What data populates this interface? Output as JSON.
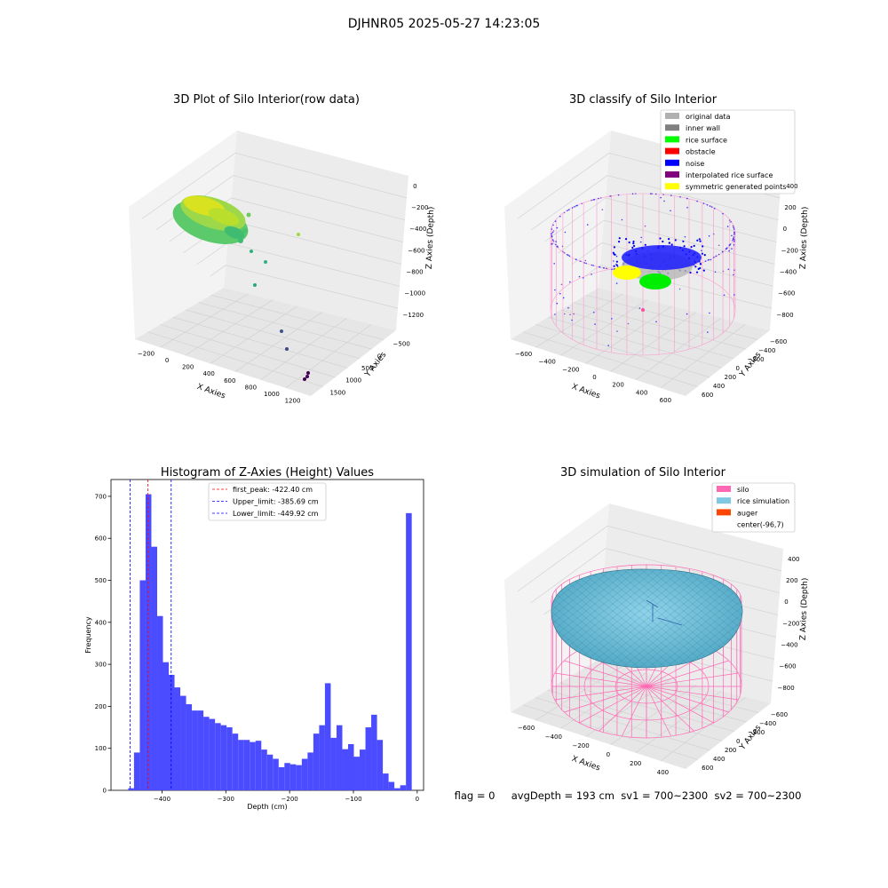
{
  "figure": {
    "suptitle": "DJHNR05 2025-05-27 14:23:05",
    "status_text": "flag = 0     avgDepth = 193 cm  sv1 = 700~2300  sv2 = 700~2300"
  },
  "colors": {
    "hist_bar": "#4b4bff",
    "peak_line": "#ff0000",
    "limit_line": "#0000ff",
    "silo_wire": "#ff69b4",
    "rice_sim": "#7ec8e3",
    "auger": "#ff4500",
    "rice_surface": "#00ff00",
    "noise": "#0000ff",
    "interp": "#800080",
    "symm": "#ffff00",
    "orig": "#b0b0b0",
    "inner_wall": "#808080",
    "obstacle": "#ff0000"
  },
  "panel1": {
    "title": "3D Plot of Silo Interior(row data)",
    "xlabel": "X Axies",
    "ylabel": "Y Axies",
    "zlabel": "Z Axies (Depth)",
    "xticks": [
      "−200",
      "0",
      "200",
      "400",
      "600",
      "800",
      "1000",
      "1200"
    ],
    "yticks": [
      "−500",
      "0",
      "500",
      "1000",
      "1500"
    ],
    "zticks": [
      "0",
      "−200",
      "−400",
      "−600",
      "−800",
      "−1000",
      "−1200"
    ]
  },
  "panel2": {
    "title": "3D classify of Silo Interior",
    "xlabel": "X Axies",
    "ylabel": "Y Axies",
    "zlabel": "Z Axies (Depth)",
    "xticks": [
      "−600",
      "−400",
      "−200",
      "0",
      "200",
      "400",
      "600"
    ],
    "yticks": [
      "−600",
      "−400",
      "−200",
      "0",
      "200",
      "400",
      "600"
    ],
    "zticks": [
      "400",
      "200",
      "0",
      "−200",
      "−400",
      "−600",
      "−800"
    ],
    "legend": [
      {
        "label": "original data",
        "color": "#b0b0b0"
      },
      {
        "label": "inner wall",
        "color": "#808080"
      },
      {
        "label": "rice surface",
        "color": "#00ff00"
      },
      {
        "label": "obstacle",
        "color": "#ff0000"
      },
      {
        "label": "noise",
        "color": "#0000ff"
      },
      {
        "label": "interpolated rice surface",
        "color": "#800080"
      },
      {
        "label": "symmetric generated points",
        "color": "#ffff00"
      }
    ]
  },
  "panel4": {
    "title": "3D simulation of Silo Interior",
    "xlabel": "X Axies",
    "ylabel": "Y Axies",
    "zlabel": "Z Axies (Depth)",
    "xticks": [
      "−600",
      "−400",
      "−200",
      "0",
      "200",
      "400"
    ],
    "yticks": [
      "−600",
      "−400",
      "−200",
      "0",
      "200",
      "400",
      "600"
    ],
    "zticks": [
      "400",
      "200",
      "0",
      "−200",
      "−400",
      "−600",
      "−800"
    ],
    "legend": [
      {
        "label": "silo",
        "color": "#ff69b4"
      },
      {
        "label": "rice simulation",
        "color": "#7ec8e3"
      },
      {
        "label": "auger",
        "color": "#ff4500"
      },
      {
        "label": "center(-96,7)",
        "color": "#ffffff"
      }
    ]
  },
  "chart_data": {
    "type": "bar",
    "title": "Histogram of Z-Axies (Height) Values",
    "xlabel": "Depth (cm)",
    "ylabel": "Frequency",
    "xlim": [
      -480,
      10
    ],
    "ylim": [
      0,
      740
    ],
    "xticks": [
      -400,
      -300,
      -200,
      -100,
      0
    ],
    "xtick_labels": [
      "−400",
      "−300",
      "−200",
      "−100",
      "0"
    ],
    "yticks": [
      0,
      100,
      200,
      300,
      400,
      500,
      600,
      700
    ],
    "bin_start": -453,
    "bin_width": 9.07,
    "values": [
      5,
      90,
      500,
      705,
      580,
      415,
      305,
      275,
      245,
      225,
      205,
      190,
      190,
      175,
      170,
      160,
      155,
      150,
      135,
      120,
      120,
      115,
      118,
      97,
      85,
      75,
      55,
      65,
      62,
      60,
      75,
      90,
      135,
      155,
      255,
      125,
      155,
      98,
      110,
      80,
      97,
      150,
      180,
      120,
      40,
      20,
      5,
      12,
      660
    ],
    "vlines": [
      {
        "x": -422.4,
        "label": "first_peak: -422.40 cm",
        "color": "#ff0000"
      },
      {
        "x": -385.69,
        "label": "Upper_limit: -385.69 cm",
        "color": "#0000ff"
      },
      {
        "x": -449.92,
        "label": "Lower_limit: -449.92 cm",
        "color": "#0000ff"
      }
    ]
  }
}
